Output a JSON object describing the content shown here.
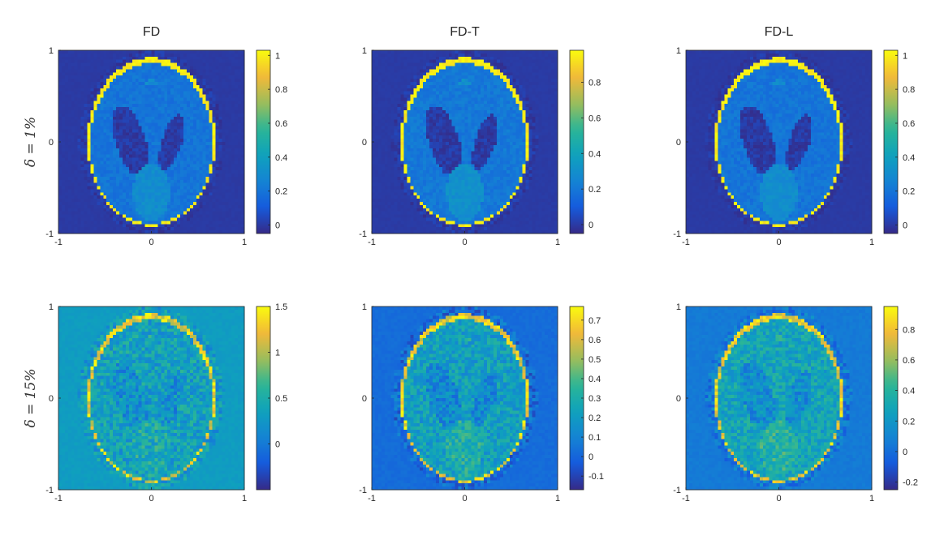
{
  "chart_data": [
    {
      "type": "heatmap",
      "title": "FD",
      "row_label": "δ = 1%",
      "x_ticks": [
        "-1",
        "0",
        "1"
      ],
      "y_ticks": [
        "1",
        "0",
        "-1"
      ],
      "xlim": [
        -1,
        1
      ],
      "ylim": [
        -1,
        1
      ],
      "colorbar_range": [
        -0.05,
        1.03
      ],
      "colorbar_ticks": [
        {
          "label": "1",
          "value": 1.0
        },
        {
          "label": "0.8",
          "value": 0.8
        },
        {
          "label": "0.6",
          "value": 0.6
        },
        {
          "label": "0.4",
          "value": 0.4
        },
        {
          "label": "0.2",
          "value": 0.2
        },
        {
          "label": "0",
          "value": 0.0
        }
      ],
      "levels": {
        "background": 0.0,
        "head_interior": 0.2,
        "skull": 1.0,
        "ventricles": 0.0,
        "lower_blob": 0.3
      },
      "noise": 0.04
    },
    {
      "type": "heatmap",
      "title": "FD-T",
      "row_label": "",
      "x_ticks": [
        "-1",
        "0",
        "1"
      ],
      "y_ticks": [
        "1",
        "0",
        "-1"
      ],
      "xlim": [
        -1,
        1
      ],
      "ylim": [
        -1,
        1
      ],
      "colorbar_range": [
        -0.05,
        0.98
      ],
      "colorbar_ticks": [
        {
          "label": "0.8",
          "value": 0.8
        },
        {
          "label": "0.6",
          "value": 0.6
        },
        {
          "label": "0.4",
          "value": 0.4
        },
        {
          "label": "0.2",
          "value": 0.2
        },
        {
          "label": "0",
          "value": 0.0
        }
      ],
      "levels": {
        "background": 0.0,
        "head_interior": 0.2,
        "skull": 0.95,
        "ventricles": 0.0,
        "lower_blob": 0.3
      },
      "noise": 0.04
    },
    {
      "type": "heatmap",
      "title": "FD-L",
      "row_label": "",
      "x_ticks": [
        "-1",
        "0",
        "1"
      ],
      "y_ticks": [
        "1",
        "0",
        "-1"
      ],
      "xlim": [
        -1,
        1
      ],
      "ylim": [
        -1,
        1
      ],
      "colorbar_range": [
        -0.05,
        1.03
      ],
      "colorbar_ticks": [
        {
          "label": "1",
          "value": 1.0
        },
        {
          "label": "0.8",
          "value": 0.8
        },
        {
          "label": "0.6",
          "value": 0.6
        },
        {
          "label": "0.4",
          "value": 0.4
        },
        {
          "label": "0.2",
          "value": 0.2
        },
        {
          "label": "0",
          "value": 0.0
        }
      ],
      "levels": {
        "background": 0.0,
        "head_interior": 0.2,
        "skull": 1.0,
        "ventricles": 0.0,
        "lower_blob": 0.3
      },
      "noise": 0.04
    },
    {
      "type": "heatmap",
      "title": "",
      "row_label": "δ = 15%",
      "x_ticks": [
        "-1",
        "0",
        "1"
      ],
      "y_ticks": [
        "1",
        "0",
        "-1"
      ],
      "xlim": [
        -1,
        1
      ],
      "ylim": [
        -1,
        1
      ],
      "colorbar_range": [
        -0.5,
        1.5
      ],
      "colorbar_ticks": [
        {
          "label": "1.5",
          "value": 1.5
        },
        {
          "label": "1",
          "value": 1.0
        },
        {
          "label": "0.5",
          "value": 0.5
        },
        {
          "label": "0",
          "value": 0.0
        }
      ],
      "levels": {
        "background": 0.3,
        "head_interior": 0.35,
        "skull": 1.25,
        "ventricles": 0.2,
        "lower_blob": 0.45
      },
      "noise": 0.3
    },
    {
      "type": "heatmap",
      "title": "",
      "row_label": "",
      "x_ticks": [
        "-1",
        "0",
        "1"
      ],
      "y_ticks": [
        "1",
        "0",
        "-1"
      ],
      "xlim": [
        -1,
        1
      ],
      "ylim": [
        -1,
        1
      ],
      "colorbar_range": [
        -0.17,
        0.77
      ],
      "colorbar_ticks": [
        {
          "label": "0.7",
          "value": 0.7
        },
        {
          "label": "0.6",
          "value": 0.6
        },
        {
          "label": "0.5",
          "value": 0.5
        },
        {
          "label": "0.4",
          "value": 0.4
        },
        {
          "label": "0.3",
          "value": 0.3
        },
        {
          "label": "0.2",
          "value": 0.2
        },
        {
          "label": "0.1",
          "value": 0.1
        },
        {
          "label": "0",
          "value": 0.0
        },
        {
          "label": "-0.1",
          "value": -0.1
        }
      ],
      "levels": {
        "background": 0.02,
        "head_interior": 0.22,
        "skull": 0.65,
        "ventricles": 0.12,
        "lower_blob": 0.3
      },
      "noise": 0.12
    },
    {
      "type": "heatmap",
      "title": "",
      "row_label": "",
      "x_ticks": [
        "-1",
        "0",
        "1"
      ],
      "y_ticks": [
        "1",
        "0",
        "-1"
      ],
      "xlim": [
        -1,
        1
      ],
      "ylim": [
        -1,
        1
      ],
      "colorbar_range": [
        -0.25,
        0.95
      ],
      "colorbar_ticks": [
        {
          "label": "0.8",
          "value": 0.8
        },
        {
          "label": "0.6",
          "value": 0.6
        },
        {
          "label": "0.4",
          "value": 0.4
        },
        {
          "label": "0.2",
          "value": 0.2
        },
        {
          "label": "0",
          "value": 0.0
        },
        {
          "label": "-0.2",
          "value": -0.2
        }
      ],
      "levels": {
        "background": 0.05,
        "head_interior": 0.28,
        "skull": 0.8,
        "ventricles": 0.15,
        "lower_blob": 0.38
      },
      "noise": 0.15
    }
  ],
  "colormap": "parula"
}
